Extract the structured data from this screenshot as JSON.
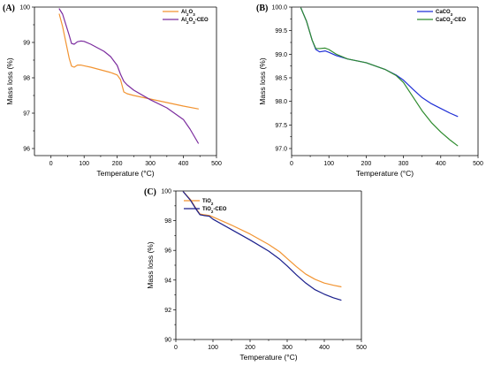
{
  "chart_data": [
    {
      "panel": "(A)",
      "type": "line",
      "xlabel": "Temperature (°C)",
      "ylabel": "Mass loss (%)",
      "xlim": [
        -50,
        500
      ],
      "ylim": [
        95.8,
        100
      ],
      "xticks": [
        0,
        100,
        200,
        300,
        400,
        500
      ],
      "yticks": [
        96,
        97,
        98,
        99,
        100
      ],
      "xtick_labels": [
        "0",
        "100",
        "200",
        "300",
        "400",
        "500"
      ],
      "ytick_labels": [
        "96",
        "97",
        "98",
        "99",
        "100"
      ],
      "legend_position": "top-right",
      "series": [
        {
          "name": "Al₂O₃",
          "color": "#f29432",
          "x": [
            25,
            35,
            45,
            55,
            62,
            70,
            80,
            90,
            100,
            120,
            140,
            160,
            180,
            200,
            210,
            220,
            230,
            250,
            300,
            350,
            400,
            445
          ],
          "y": [
            99.8,
            99.45,
            99.0,
            98.55,
            98.33,
            98.3,
            98.36,
            98.36,
            98.34,
            98.3,
            98.25,
            98.2,
            98.15,
            98.08,
            97.95,
            97.6,
            97.55,
            97.5,
            97.4,
            97.3,
            97.2,
            97.12
          ]
        },
        {
          "name": "Al₂O₃-CEO",
          "color": "#7b2c9e",
          "x": [
            25,
            35,
            45,
            55,
            62,
            70,
            80,
            90,
            100,
            120,
            140,
            160,
            180,
            200,
            210,
            220,
            230,
            250,
            300,
            350,
            400,
            420,
            445
          ],
          "y": [
            99.95,
            99.8,
            99.5,
            99.2,
            98.97,
            98.95,
            99.02,
            99.04,
            99.03,
            98.95,
            98.85,
            98.75,
            98.6,
            98.35,
            98.1,
            97.9,
            97.8,
            97.65,
            97.38,
            97.15,
            96.82,
            96.55,
            96.15
          ]
        }
      ]
    },
    {
      "panel": "(B)",
      "type": "line",
      "xlabel": "Temperature (°C)",
      "ylabel": "Mass loss (%)",
      "xlim": [
        0,
        500
      ],
      "ylim": [
        96.85,
        100
      ],
      "xticks": [
        0,
        100,
        200,
        300,
        400,
        500
      ],
      "yticks": [
        97.0,
        97.5,
        98.0,
        98.5,
        99.0,
        99.5,
        100.0
      ],
      "xtick_labels": [
        "0",
        "100",
        "200",
        "300",
        "400",
        "500"
      ],
      "ytick_labels": [
        "97.0",
        "97.5",
        "98.0",
        "98.5",
        "99.0",
        "99.5",
        "100.0"
      ],
      "legend_position": "top-right",
      "series": [
        {
          "name": "CaCO₃",
          "color": "#1f2fd6",
          "x": [
            25,
            40,
            55,
            65,
            75,
            90,
            100,
            120,
            150,
            200,
            250,
            280,
            300,
            325,
            350,
            375,
            400,
            425,
            445
          ],
          "y": [
            99.98,
            99.7,
            99.3,
            99.1,
            99.05,
            99.07,
            99.04,
            98.97,
            98.9,
            98.82,
            98.68,
            98.56,
            98.45,
            98.26,
            98.08,
            97.95,
            97.85,
            97.75,
            97.68
          ]
        },
        {
          "name": "CaCO₃-CEO",
          "color": "#2e8b2e",
          "x": [
            25,
            40,
            55,
            65,
            75,
            90,
            100,
            120,
            150,
            200,
            250,
            280,
            300,
            325,
            350,
            375,
            400,
            425,
            445
          ],
          "y": [
            99.98,
            99.7,
            99.3,
            99.12,
            99.12,
            99.13,
            99.1,
            99.0,
            98.9,
            98.82,
            98.68,
            98.55,
            98.4,
            98.1,
            97.8,
            97.55,
            97.35,
            97.18,
            97.06
          ]
        }
      ]
    },
    {
      "panel": "(C)",
      "type": "line",
      "xlabel": "Temperature (°C)",
      "ylabel": "Mass loss (%)",
      "xlim": [
        0,
        500
      ],
      "ylim": [
        90,
        100
      ],
      "xticks": [
        0,
        100,
        200,
        300,
        400,
        500
      ],
      "yticks": [
        90,
        92,
        94,
        96,
        98,
        100
      ],
      "xtick_labels": [
        "0",
        "100",
        "200",
        "300",
        "400",
        "500"
      ],
      "ytick_labels": [
        "90",
        "92",
        "94",
        "96",
        "98",
        "100"
      ],
      "legend_position": "top-left",
      "series": [
        {
          "name": "TiO₂",
          "color": "#f29432",
          "x": [
            20,
            40,
            55,
            65,
            75,
            90,
            100,
            150,
            200,
            250,
            280,
            300,
            325,
            350,
            375,
            400,
            425,
            445
          ],
          "y": [
            99.95,
            99.4,
            98.8,
            98.45,
            98.4,
            98.35,
            98.25,
            97.7,
            97.1,
            96.4,
            95.9,
            95.45,
            94.9,
            94.4,
            94.05,
            93.8,
            93.65,
            93.55
          ]
        },
        {
          "name": "TiO₂-CEO",
          "color": "#1a1f8c",
          "x": [
            20,
            40,
            55,
            65,
            75,
            90,
            100,
            150,
            200,
            250,
            280,
            300,
            325,
            350,
            375,
            400,
            425,
            445
          ],
          "y": [
            99.95,
            99.35,
            98.75,
            98.4,
            98.35,
            98.3,
            98.1,
            97.4,
            96.7,
            95.95,
            95.4,
            94.95,
            94.35,
            93.8,
            93.35,
            93.05,
            92.8,
            92.65
          ]
        }
      ]
    }
  ]
}
